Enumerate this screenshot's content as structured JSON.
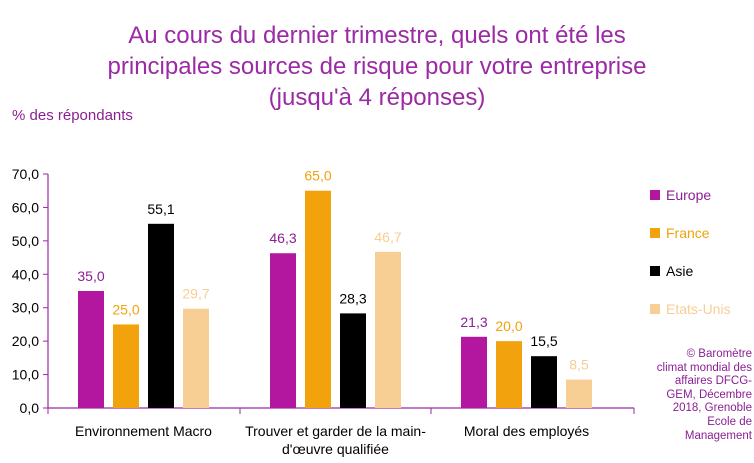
{
  "title_lines": [
    "Au cours du dernier trimestre, quels ont été les",
    "principales sources de risque pour votre entreprise",
    "(jusqu'à 4 réponses)"
  ],
  "source_lines": [
    "© Baromètre",
    "climat mondial des",
    "affaires DFCG-",
    "GEM, Décembre",
    "2018, Grenoble",
    "Ecole de",
    "Management"
  ],
  "colors": {
    "title": "#9b2aa5",
    "axis": "#9b2aa5",
    "Europe": "#b3179f",
    "France": "#f2a20c",
    "Asie": "#000000",
    "Etats-Unis": "#f7ce93"
  },
  "chart_data": {
    "type": "bar",
    "title": "Au cours du dernier trimestre, quels ont été les principales sources de risque pour votre entreprise (jusqu'à 4 réponses)",
    "ylabel": "% des répondants",
    "xlabel": "",
    "ylim": [
      0,
      70
    ],
    "yticks": [
      "0,0",
      "10,0",
      "20,0",
      "30,0",
      "40,0",
      "50,0",
      "60,0",
      "70,0"
    ],
    "categories": [
      [
        "Environnement Macro"
      ],
      [
        "Trouver et garder de la main-",
        "d'œuvre qualifiée"
      ],
      [
        "Moral des employés"
      ]
    ],
    "series": [
      {
        "name": "Europe",
        "values": [
          35.0,
          46.3,
          21.3
        ],
        "labels": [
          "35,0",
          "46,3",
          "21,3"
        ]
      },
      {
        "name": "France",
        "values": [
          25.0,
          65.0,
          20.0
        ],
        "labels": [
          "25,0",
          "65,0",
          "20,0"
        ]
      },
      {
        "name": "Asie",
        "values": [
          55.1,
          28.3,
          15.5
        ],
        "labels": [
          "55,1",
          "28,3",
          "15,5"
        ]
      },
      {
        "name": "Etats-Unis",
        "values": [
          29.7,
          46.7,
          8.5
        ],
        "labels": [
          "29,7",
          "46,7",
          "8,5"
        ]
      }
    ],
    "legend_position": "right",
    "grid": false
  }
}
